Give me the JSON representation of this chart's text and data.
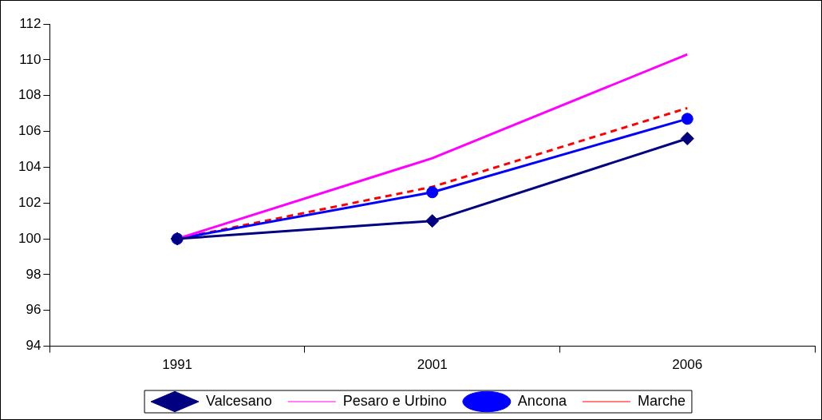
{
  "chart_data": {
    "type": "line",
    "categories": [
      "1991",
      "2001",
      "2006"
    ],
    "series": [
      {
        "name": "Valcesano",
        "color": "#000080",
        "values": [
          100,
          101.0,
          105.6
        ],
        "marker": "diamond",
        "line_style": "solid"
      },
      {
        "name": "Pesaro e Urbino",
        "color": "#ff00ff",
        "values": [
          100,
          104.5,
          110.3
        ],
        "marker": "none",
        "line_style": "solid"
      },
      {
        "name": "Ancona",
        "color": "#0000ff",
        "values": [
          100,
          102.6,
          106.7
        ],
        "marker": "circle",
        "line_style": "solid"
      },
      {
        "name": "Marche",
        "color": "#ff0000",
        "values": [
          100,
          102.9,
          107.3
        ],
        "marker": "none",
        "line_style": "dashed"
      }
    ],
    "ylim": [
      94,
      112
    ],
    "yticks": [
      94,
      96,
      98,
      100,
      102,
      104,
      106,
      108,
      110,
      112
    ],
    "grid": false,
    "legend": "bottom"
  }
}
